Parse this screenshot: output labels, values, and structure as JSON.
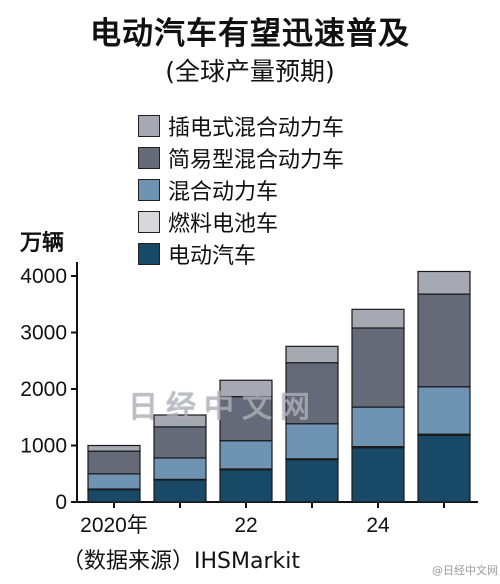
{
  "title": "电动汽车有望迅速普及",
  "subtitle": "(全球产量预期)",
  "unit_label": "万辆",
  "source": "（数据来源）IHSMarkit",
  "watermark": "日经中文网",
  "weibo_tag": "@日经中文网",
  "chart_data": {
    "type": "bar",
    "stacked": true,
    "categories": [
      "2020",
      "2021",
      "2022",
      "2023",
      "2024",
      "2025"
    ],
    "x_tick_labels": [
      "2020年",
      "",
      "22",
      "",
      "24",
      ""
    ],
    "y_ticks": [
      0,
      1000,
      2000,
      3000,
      4000
    ],
    "ylim": [
      0,
      4300
    ],
    "ylabel": "万辆",
    "legend_position": "top-center",
    "series": [
      {
        "name": "电动汽车",
        "color": "#184a68",
        "values": [
          220,
          390,
          570,
          750,
          960,
          1180
        ]
      },
      {
        "name": "燃料电池车",
        "color": "#d8d8dc",
        "values": [
          10,
          10,
          15,
          15,
          20,
          20
        ]
      },
      {
        "name": "混合动力车",
        "color": "#6f93b2",
        "values": [
          270,
          380,
          500,
          620,
          700,
          840
        ]
      },
      {
        "name": "简易型混合动力车",
        "color": "#656a78",
        "values": [
          400,
          550,
          780,
          1080,
          1400,
          1640
        ]
      },
      {
        "name": "插电式混合动力车",
        "color": "#a6a8b2",
        "values": [
          100,
          210,
          290,
          290,
          330,
          400
        ]
      }
    ]
  }
}
